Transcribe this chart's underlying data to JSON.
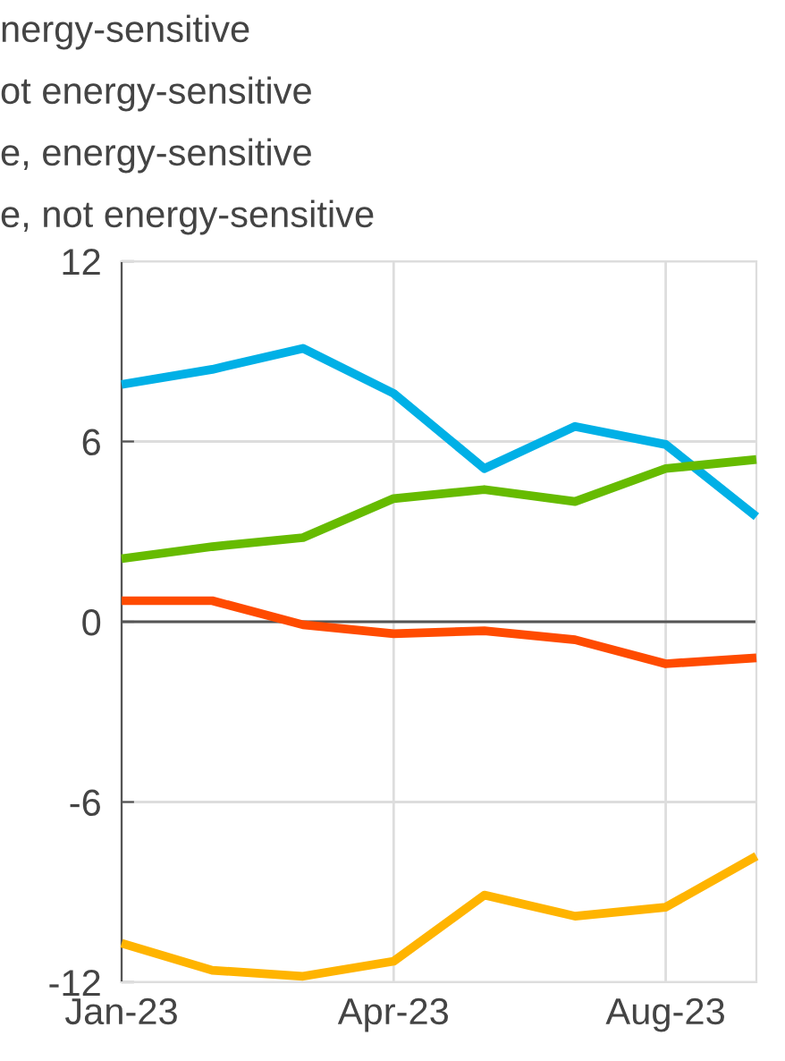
{
  "chart_data": {
    "type": "line",
    "annotations": [
      "nergy-sensitive",
      "ot energy-sensitive",
      "e, energy-sensitive",
      "e, not energy-sensitive"
    ],
    "categories": [
      "Jan-23",
      null,
      null,
      "Apr-23",
      null,
      null,
      "Aug-23",
      null
    ],
    "series": [
      {
        "color": "#00b0e6",
        "values": [
          7.9,
          8.4,
          9.1,
          7.6,
          5.1,
          6.5,
          5.9,
          3.5
        ]
      },
      {
        "color": "#66bb00",
        "values": [
          2.1,
          2.5,
          2.8,
          4.1,
          4.4,
          4.0,
          5.1,
          5.4
        ]
      },
      {
        "color": "#ff4b00",
        "values": [
          0.7,
          0.7,
          -0.1,
          -0.4,
          -0.3,
          -0.6,
          -1.4,
          -1.2
        ]
      },
      {
        "color": "#ffb400",
        "values": [
          -10.7,
          -11.6,
          -11.8,
          -11.3,
          -9.1,
          -9.8,
          -9.5,
          -7.8
        ]
      }
    ],
    "ylim": [
      -12,
      12
    ],
    "yticks": [
      -12,
      -6,
      0,
      6,
      12
    ],
    "grid": true,
    "legend": false,
    "marker": "none",
    "line_style": "solid"
  }
}
